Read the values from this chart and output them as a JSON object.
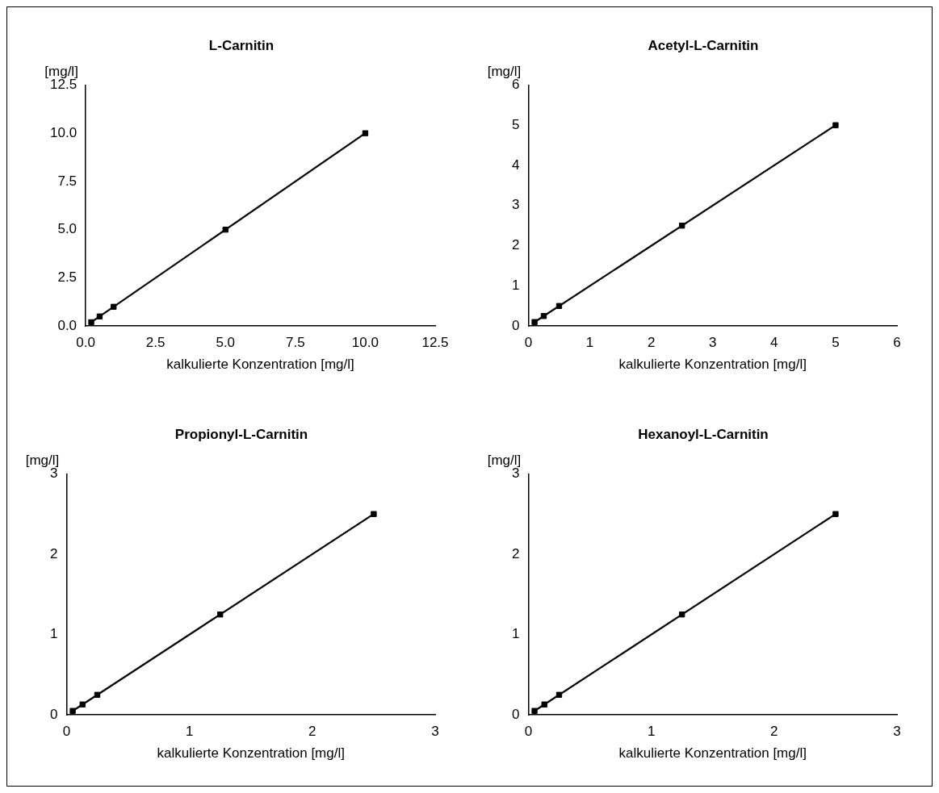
{
  "chart_data": [
    {
      "type": "scatter",
      "title": "L-Carnitin",
      "xlabel": "kalkulierte Konzentration [mg/l]",
      "ylabel": "[mg/l]",
      "marker": "square",
      "grid": false,
      "legend": false,
      "xlim": [
        0,
        12.5
      ],
      "ylim": [
        0,
        12.5
      ],
      "xticks": [
        {
          "value": 0,
          "label": "0.0"
        },
        {
          "value": 2.5,
          "label": "2.5"
        },
        {
          "value": 5,
          "label": "5.0"
        },
        {
          "value": 7.5,
          "label": "7.5"
        },
        {
          "value": 10,
          "label": "10.0"
        },
        {
          "value": 12.5,
          "label": "12.5"
        }
      ],
      "yticks": [
        {
          "value": 0,
          "label": "0.0"
        },
        {
          "value": 2.5,
          "label": "2.5"
        },
        {
          "value": 5,
          "label": "5.0"
        },
        {
          "value": 7.5,
          "label": "7.5"
        },
        {
          "value": 10,
          "label": "10.0"
        },
        {
          "value": 12.5,
          "label": "12.5"
        }
      ],
      "series": [
        {
          "color": "#000000",
          "x": [
            0.2,
            0.5,
            1,
            5,
            10
          ],
          "values": [
            0.2,
            0.5,
            1,
            5,
            10
          ]
        },
        {
          "type": "line",
          "color": "#000000",
          "marker": "none",
          "x": [
            0.2,
            10
          ],
          "values": [
            0.2,
            10
          ]
        }
      ]
    },
    {
      "type": "scatter",
      "title": "Acetyl-L-Carnitin",
      "xlabel": "kalkulierte Konzentration [mg/l]",
      "ylabel": "[mg/l]",
      "marker": "square",
      "grid": false,
      "legend": false,
      "xlim": [
        0,
        6
      ],
      "ylim": [
        0,
        6
      ],
      "xticks": [
        0,
        1,
        2,
        3,
        4,
        5,
        6
      ],
      "yticks": [
        0,
        1,
        2,
        3,
        4,
        5,
        6
      ],
      "series": [
        {
          "color": "#000000",
          "x": [
            0.1,
            0.25,
            0.5,
            2.5,
            5
          ],
          "values": [
            0.1,
            0.25,
            0.5,
            2.5,
            5
          ]
        },
        {
          "type": "line",
          "color": "#000000",
          "marker": "none",
          "x": [
            0.1,
            5
          ],
          "values": [
            0.1,
            5
          ]
        }
      ]
    },
    {
      "type": "scatter",
      "title": "Propionyl-L-Carnitin",
      "xlabel": "kalkulierte Konzentration [mg/l]",
      "ylabel": "[mg/l]",
      "marker": "square",
      "grid": false,
      "legend": false,
      "xlim": [
        0,
        3
      ],
      "ylim": [
        0,
        3
      ],
      "xticks": [
        0,
        1,
        2,
        3
      ],
      "yticks": [
        0,
        1,
        2,
        3
      ],
      "series": [
        {
          "color": "#000000",
          "x": [
            0.05,
            0.13,
            0.25,
            1.25,
            2.5
          ],
          "values": [
            0.05,
            0.13,
            0.25,
            1.25,
            2.5
          ]
        },
        {
          "type": "line",
          "color": "#000000",
          "marker": "none",
          "x": [
            0.05,
            2.5
          ],
          "values": [
            0.05,
            2.5
          ]
        }
      ]
    },
    {
      "type": "scatter",
      "title": "Hexanoyl-L-Carnitin",
      "xlabel": "kalkulierte Konzentration [mg/l]",
      "ylabel": "[mg/l]",
      "marker": "square",
      "grid": false,
      "legend": false,
      "xlim": [
        0,
        3
      ],
      "ylim": [
        0,
        3
      ],
      "xticks": [
        0,
        1,
        2,
        3
      ],
      "yticks": [
        0,
        1,
        2,
        3
      ],
      "series": [
        {
          "color": "#000000",
          "x": [
            0.05,
            0.13,
            0.25,
            1.25,
            2.5
          ],
          "values": [
            0.05,
            0.13,
            0.25,
            1.25,
            2.5
          ]
        },
        {
          "type": "line",
          "color": "#000000",
          "marker": "none",
          "x": [
            0.05,
            2.5
          ],
          "values": [
            0.05,
            2.5
          ]
        }
      ]
    }
  ]
}
